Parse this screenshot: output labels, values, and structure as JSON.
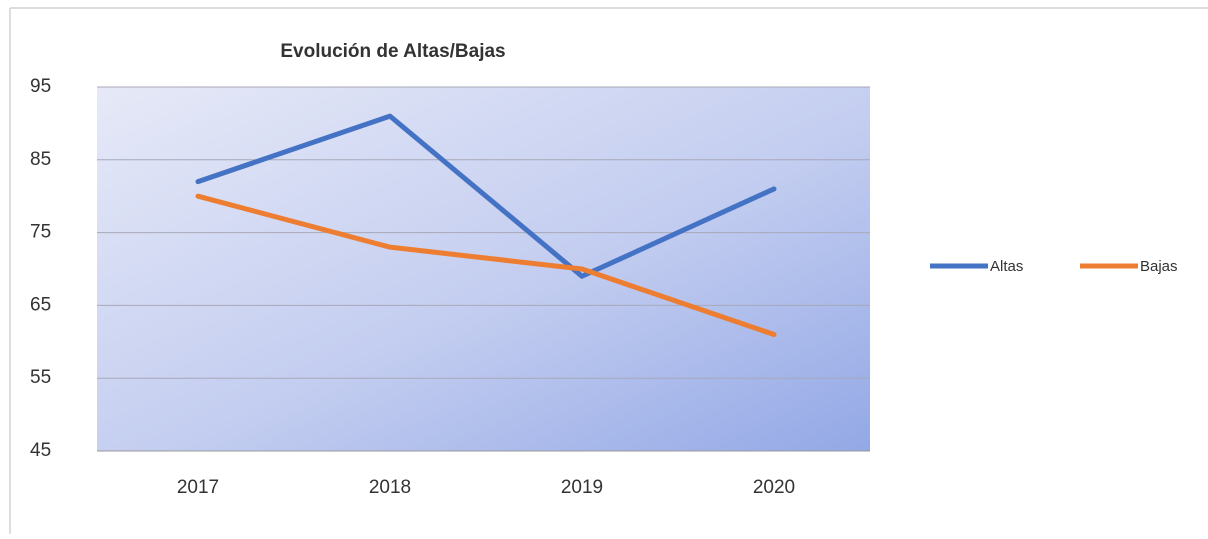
{
  "chart_data": {
    "type": "line",
    "title": "Evolución de Altas/Bajas",
    "categories": [
      "2017",
      "2018",
      "2019",
      "2020"
    ],
    "series": [
      {
        "name": "Altas",
        "color": "#4472c4",
        "values": [
          82,
          91,
          69,
          81
        ]
      },
      {
        "name": "Bajas",
        "color": "#ed7d31",
        "values": [
          80,
          73,
          70,
          61
        ]
      }
    ],
    "ylim": [
      45,
      95
    ],
    "yticks": [
      45,
      55,
      65,
      75,
      85,
      95
    ],
    "grid": true,
    "legend": "right"
  }
}
